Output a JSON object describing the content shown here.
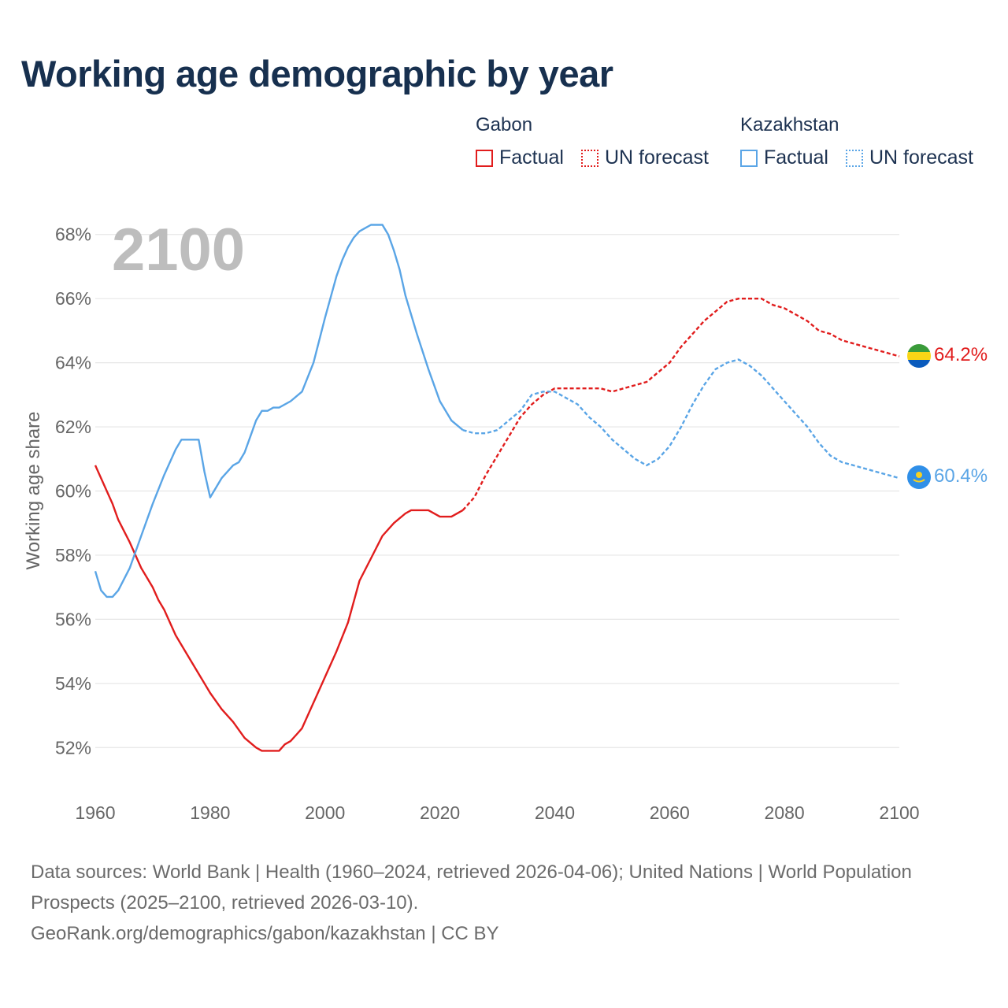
{
  "title": "Working age demographic by year",
  "legend": {
    "gabon": {
      "name": "Gabon",
      "factual": "Factual",
      "forecast": "UN forecast"
    },
    "kazakhstan": {
      "name": "Kazakhstan",
      "factual": "Factual",
      "forecast": "UN forecast"
    }
  },
  "year_watermark": "2100",
  "colors": {
    "gabon": "#e11d1d",
    "kazakhstan": "#5aa5e6"
  },
  "footer": {
    "sources": "Data sources: World Bank | Health (1960–2024, retrieved 2026-04-06); United Nations | World Population Prospects (2025–2100, retrieved 2026-03-10).",
    "credit": "GeoRank.org/demographics/gabon/kazakhstan | CC BY"
  },
  "chart_data": {
    "type": "line",
    "title": "Working age demographic by year",
    "xlabel": "",
    "ylabel": "Working age share",
    "xlim": [
      1960,
      2100
    ],
    "ylim": [
      51,
      69
    ],
    "x_ticks": [
      1960,
      1980,
      2000,
      2020,
      2040,
      2060,
      2080,
      2100
    ],
    "x_tick_labels": [
      "1960",
      "1980",
      "2000",
      "2020",
      "2040",
      "2060",
      "2080",
      "2100"
    ],
    "y_ticks": [
      52,
      54,
      56,
      58,
      60,
      62,
      64,
      66,
      68
    ],
    "y_tick_labels": [
      "52%",
      "54%",
      "56%",
      "58%",
      "60%",
      "62%",
      "64%",
      "66%",
      "68%"
    ],
    "grid": true,
    "series": [
      {
        "name": "Gabon",
        "segment": "Factual",
        "x": [
          1960,
          1962,
          1963,
          1964,
          1966,
          1968,
          1970,
          1971,
          1972,
          1974,
          1976,
          1978,
          1980,
          1982,
          1984,
          1986,
          1988,
          1989,
          1990,
          1992,
          1993,
          1994,
          1995,
          1996,
          1998,
          2000,
          2002,
          2004,
          2006,
          2008,
          2010,
          2012,
          2014,
          2015,
          2016,
          2018,
          2020,
          2022,
          2024
        ],
        "y": [
          60.8,
          60.0,
          59.6,
          59.1,
          58.4,
          57.6,
          57.0,
          56.6,
          56.3,
          55.5,
          54.9,
          54.3,
          53.7,
          53.2,
          52.8,
          52.3,
          52.0,
          51.9,
          51.9,
          51.9,
          52.1,
          52.2,
          52.4,
          52.6,
          53.4,
          54.2,
          55.0,
          55.9,
          57.2,
          57.9,
          58.6,
          59.0,
          59.3,
          59.4,
          59.4,
          59.4,
          59.2,
          59.2,
          59.4
        ],
        "label": ""
      },
      {
        "name": "Gabon",
        "segment": "UN forecast",
        "x": [
          2024,
          2026,
          2028,
          2030,
          2032,
          2034,
          2036,
          2038,
          2040,
          2042,
          2044,
          2046,
          2048,
          2050,
          2052,
          2054,
          2056,
          2058,
          2060,
          2062,
          2064,
          2066,
          2068,
          2070,
          2072,
          2074,
          2076,
          2078,
          2080,
          2082,
          2084,
          2086,
          2088,
          2090,
          2092,
          2094,
          2096,
          2098,
          2100
        ],
        "y": [
          59.4,
          59.8,
          60.5,
          61.1,
          61.7,
          62.3,
          62.7,
          63.0,
          63.2,
          63.2,
          63.2,
          63.2,
          63.2,
          63.1,
          63.2,
          63.3,
          63.4,
          63.7,
          64.0,
          64.5,
          64.9,
          65.3,
          65.6,
          65.9,
          66.0,
          66.0,
          66.0,
          65.8,
          65.7,
          65.5,
          65.3,
          65.0,
          64.9,
          64.7,
          64.6,
          64.5,
          64.4,
          64.3,
          64.2
        ],
        "label": "64.2%"
      },
      {
        "name": "Kazakhstan",
        "segment": "Factual",
        "x": [
          1960,
          1961,
          1962,
          1963,
          1964,
          1966,
          1968,
          1970,
          1972,
          1974,
          1975,
          1976,
          1978,
          1979,
          1980,
          1982,
          1984,
          1985,
          1986,
          1987,
          1988,
          1989,
          1990,
          1991,
          1992,
          1994,
          1996,
          1998,
          2000,
          2002,
          2003,
          2004,
          2005,
          2006,
          2007,
          2008,
          2009,
          2010,
          2011,
          2012,
          2013,
          2014,
          2016,
          2018,
          2020,
          2022,
          2024
        ],
        "y": [
          57.5,
          56.9,
          56.7,
          56.7,
          56.9,
          57.6,
          58.6,
          59.6,
          60.5,
          61.3,
          61.6,
          61.6,
          61.6,
          60.6,
          59.8,
          60.4,
          60.8,
          60.9,
          61.2,
          61.7,
          62.2,
          62.5,
          62.5,
          62.6,
          62.6,
          62.8,
          63.1,
          64.0,
          65.4,
          66.7,
          67.2,
          67.6,
          67.9,
          68.1,
          68.2,
          68.3,
          68.3,
          68.3,
          68.0,
          67.5,
          66.9,
          66.1,
          64.9,
          63.8,
          62.8,
          62.2,
          61.9
        ],
        "label": ""
      },
      {
        "name": "Kazakhstan",
        "segment": "UN forecast",
        "x": [
          2024,
          2026,
          2028,
          2030,
          2032,
          2034,
          2036,
          2038,
          2040,
          2042,
          2044,
          2046,
          2048,
          2050,
          2052,
          2054,
          2056,
          2058,
          2060,
          2062,
          2064,
          2066,
          2068,
          2070,
          2072,
          2074,
          2076,
          2078,
          2080,
          2082,
          2084,
          2086,
          2088,
          2090,
          2092,
          2094,
          2096,
          2098,
          2100
        ],
        "y": [
          61.9,
          61.8,
          61.8,
          61.9,
          62.2,
          62.5,
          63.0,
          63.1,
          63.1,
          62.9,
          62.7,
          62.3,
          62.0,
          61.6,
          61.3,
          61.0,
          60.8,
          61.0,
          61.4,
          62.0,
          62.7,
          63.3,
          63.8,
          64.0,
          64.1,
          63.9,
          63.6,
          63.2,
          62.8,
          62.4,
          62.0,
          61.5,
          61.1,
          60.9,
          60.8,
          60.7,
          60.6,
          60.5,
          60.4
        ],
        "label": "60.4%"
      }
    ]
  }
}
